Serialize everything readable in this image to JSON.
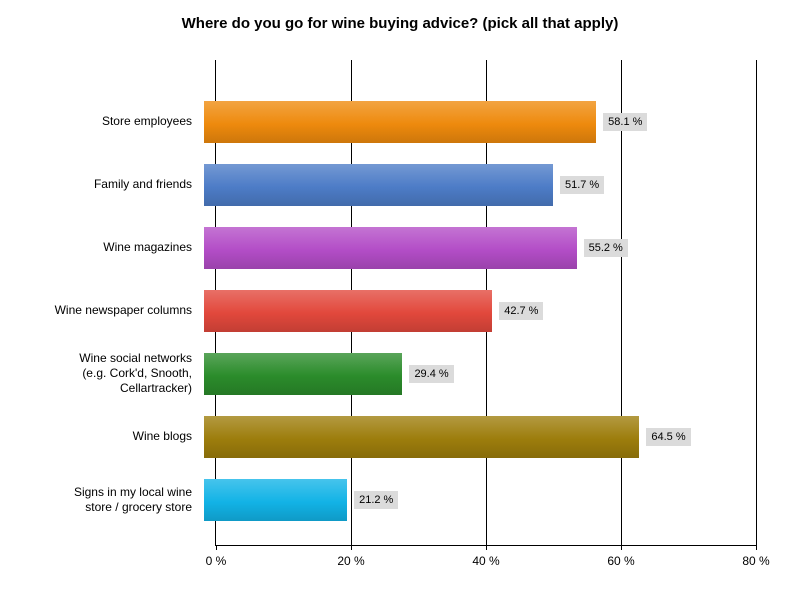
{
  "title": "Where do you go for wine buying advice? (pick all that apply)",
  "chart_data": {
    "type": "bar",
    "orientation": "horizontal",
    "title": "Where do you go for wine buying advice? (pick all that apply)",
    "categories": [
      "Store employees",
      "Family and friends",
      "Wine magazines",
      "Wine newspaper columns",
      "Wine social networks\n(e.g. Cork'd, Snooth,\nCellartracker)",
      "Wine blogs",
      "Signs in my local wine\nstore / grocery store"
    ],
    "values": [
      58.1,
      51.7,
      55.2,
      42.7,
      29.4,
      64.5,
      21.2
    ],
    "value_labels": [
      "58.1 %",
      "51.7 %",
      "55.2 %",
      "42.7 %",
      "29.4 %",
      "64.5 %",
      "21.2 %"
    ],
    "bar_colors": [
      "#EE8A0D",
      "#4D7CC7",
      "#B34DC7",
      "#E2483C",
      "#2B8C2B",
      "#9D7D0C",
      "#12B3E6"
    ],
    "value_label_bg": "#DBDBDB",
    "xlabel": "",
    "ylabel": "",
    "xlim": [
      0,
      80
    ],
    "x_ticks": [
      0,
      20,
      40,
      60,
      80
    ],
    "x_tick_labels": [
      "0 %",
      "20 %",
      "40 %",
      "60 %",
      "80 %"
    ],
    "grid": "vertical",
    "legend": "none"
  }
}
